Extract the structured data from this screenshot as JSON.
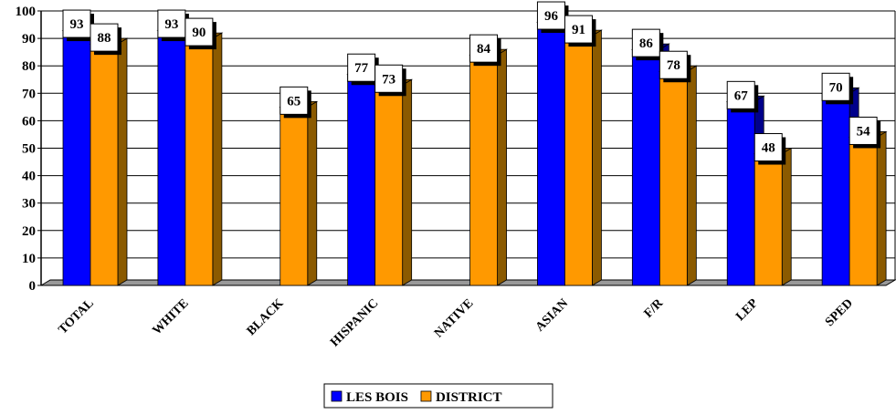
{
  "chart_data": {
    "type": "bar",
    "title": "",
    "xlabel": "",
    "ylabel": "",
    "categories": [
      "TOTAL",
      "WHITE",
      "BLACK",
      "HISPANIC",
      "NATIVE",
      "ASIAN",
      "F/R",
      "LEP",
      "SPED"
    ],
    "series": [
      {
        "name": "LES BOIS",
        "color": "#0000FF",
        "shadow": "#00008B",
        "values": [
          93,
          93,
          null,
          77,
          null,
          96,
          86,
          67,
          70
        ]
      },
      {
        "name": "DISTRICT",
        "color": "#FF9900",
        "shadow": "#8B5A00",
        "values": [
          88,
          90,
          65,
          73,
          84,
          91,
          78,
          48,
          54
        ]
      }
    ],
    "ylim": [
      0,
      100
    ],
    "yticks": [
      0,
      10,
      20,
      30,
      40,
      50,
      60,
      70,
      80,
      90,
      100
    ],
    "grid": true,
    "legend_position": "bottom-center",
    "floor_color": "#999999"
  }
}
